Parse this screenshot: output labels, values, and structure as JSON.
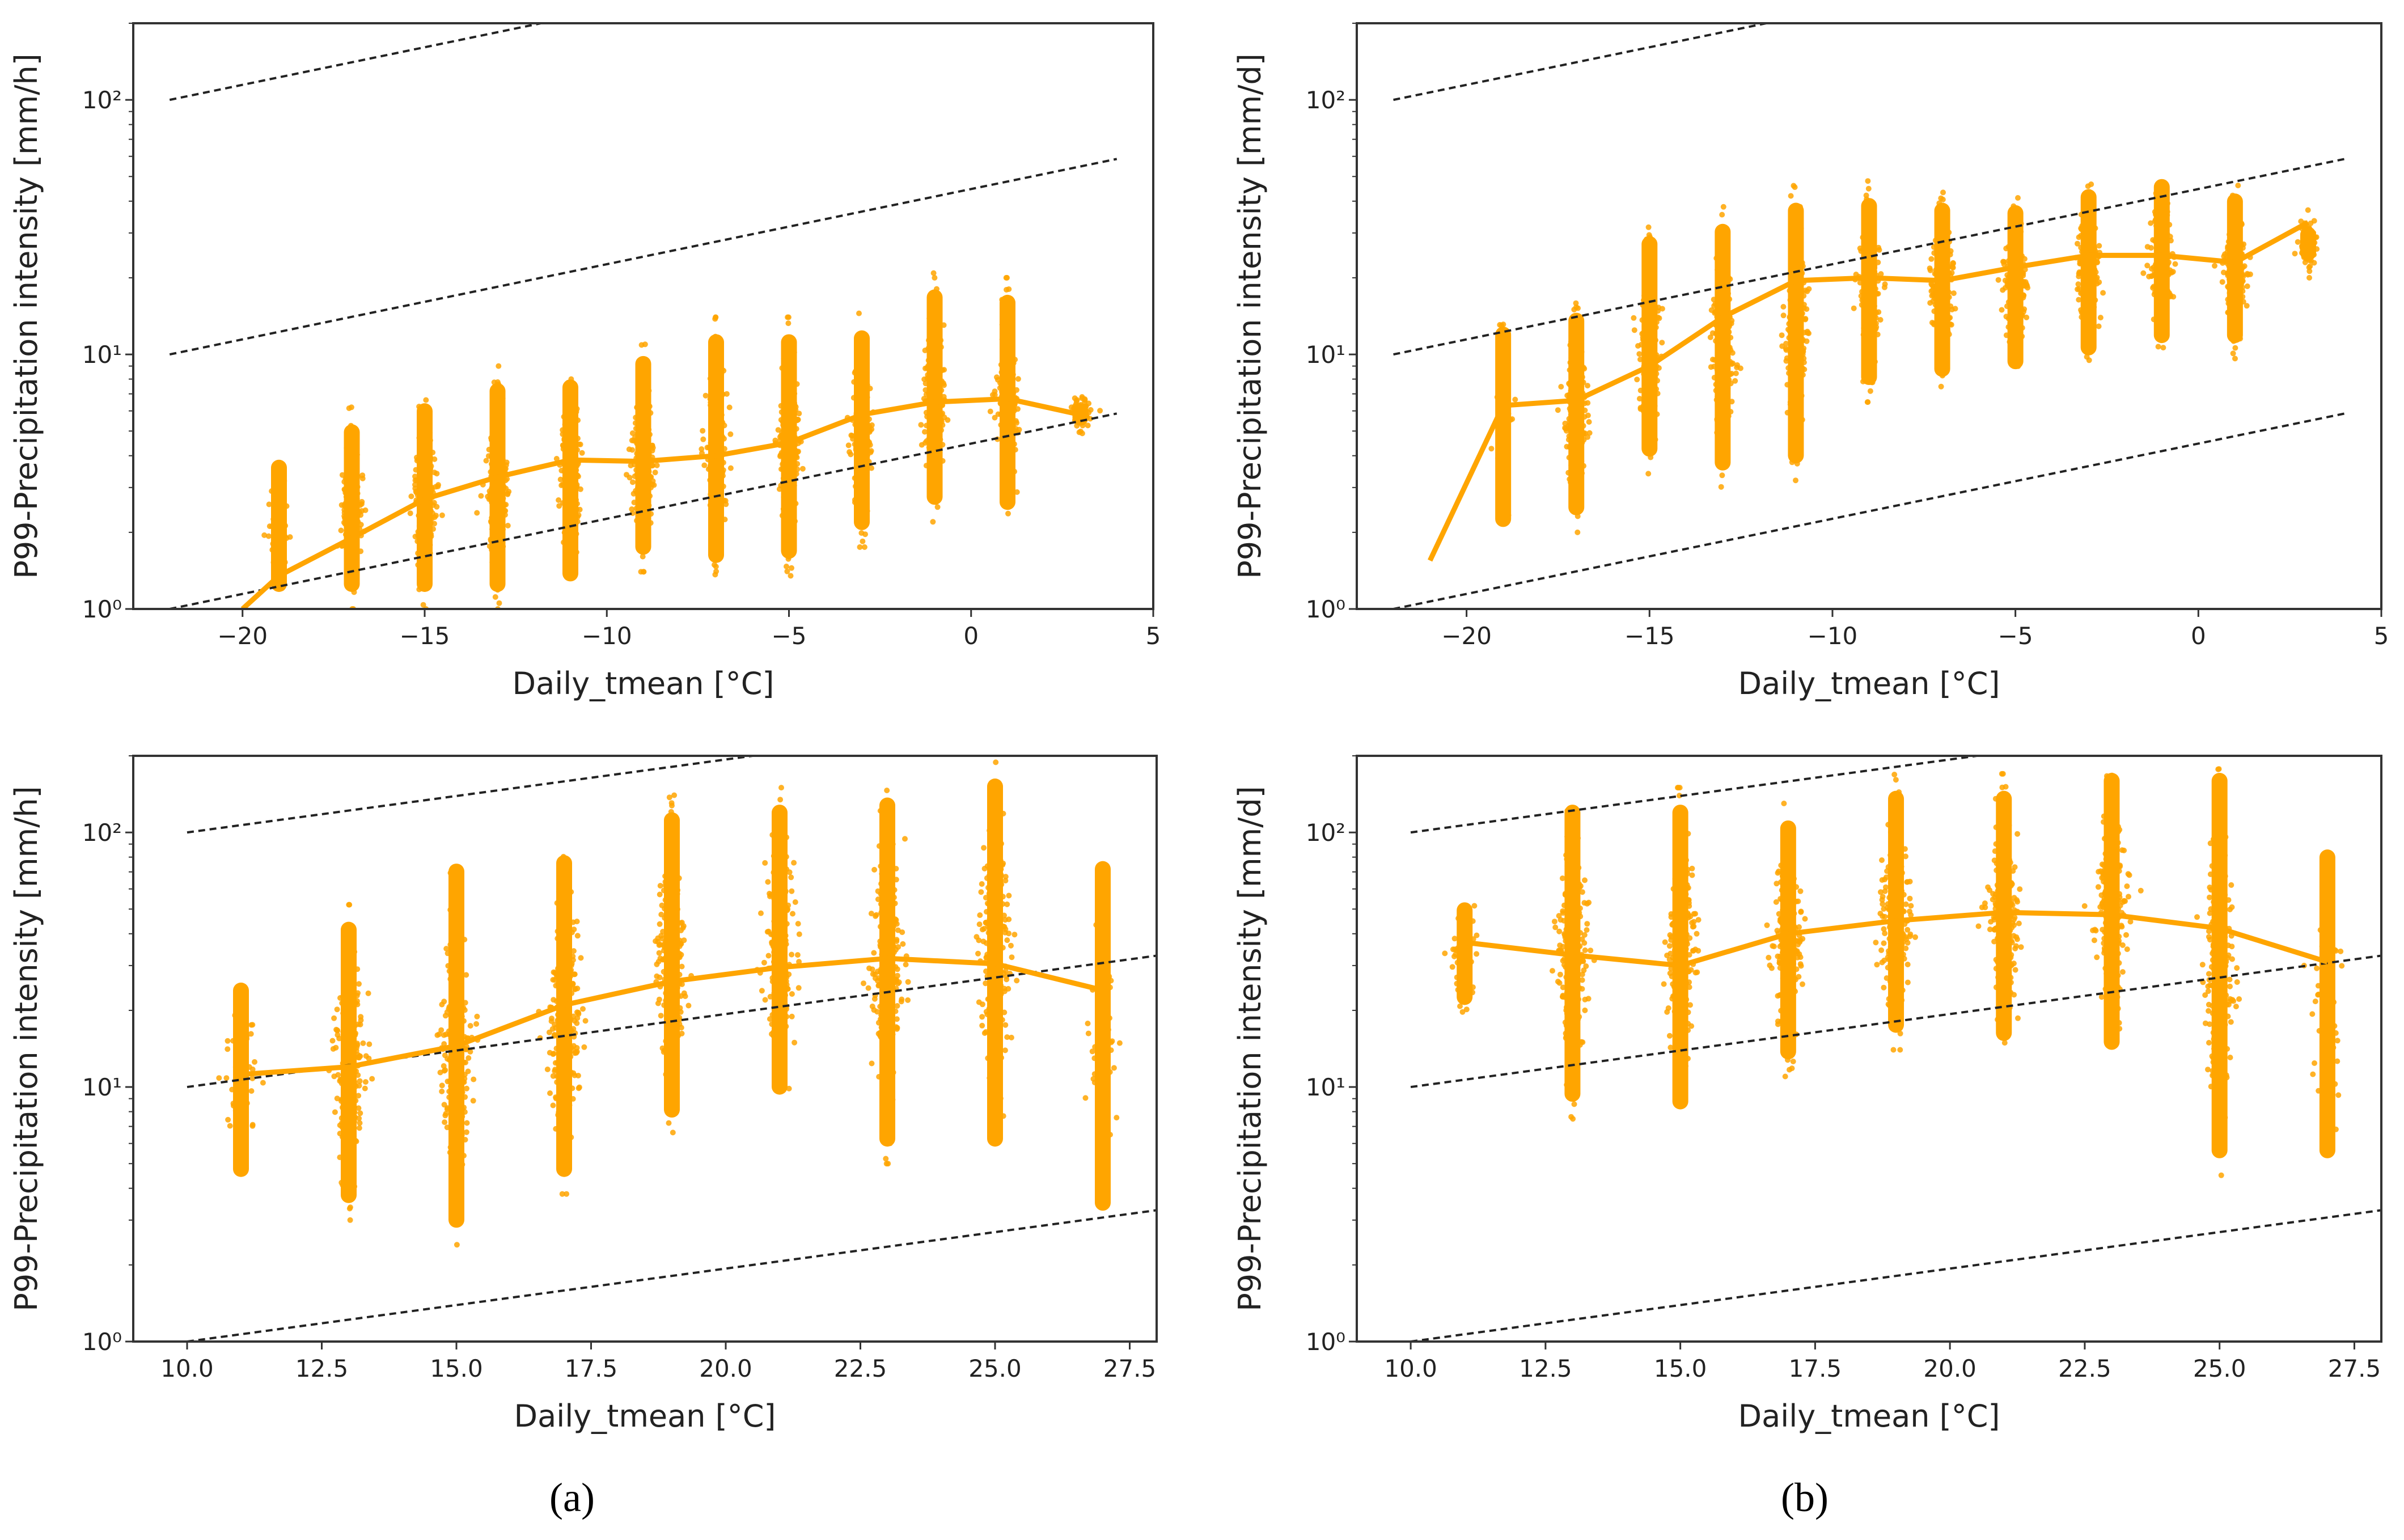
{
  "colors": {
    "series": "#FFA500",
    "reference": "#222222",
    "axes": "#333333"
  },
  "captions": [
    "(a)",
    "(b)"
  ],
  "chart_data": [
    {
      "type": "scatter",
      "panel": "top-left",
      "xlabel": "Daily_tmean [°C]",
      "ylabel": "P99-Precipitation intensity [mm/h]",
      "xlim": [
        -23,
        5
      ],
      "ylim": [
        1,
        200
      ],
      "yscale": "log",
      "xticks": [
        -20,
        -15,
        -10,
        -5,
        0,
        5
      ],
      "xtick_labels": [
        "−20",
        "−15",
        "−10",
        "−5",
        "0",
        "5"
      ],
      "yticks": [
        1,
        10,
        100
      ],
      "ytick_labels": [
        "10⁰",
        "10¹",
        "10²"
      ],
      "reference_lines": {
        "x_start": -22,
        "x_end": 4,
        "y_start": [
          1,
          10,
          100
        ],
        "rate_per_degC": 0.068,
        "style": "dashed"
      },
      "clusters": {
        "x": [
          -19,
          -17,
          -15,
          -13,
          -11,
          -9,
          -7,
          -5,
          -3,
          -1,
          1,
          3
        ],
        "ymin": [
          1,
          1,
          1,
          1,
          1.1,
          1.4,
          1.3,
          1.35,
          1.75,
          2.2,
          2.1,
          4.5
        ],
        "ymax": [
          4.5,
          6.2,
          7.5,
          9,
          9.3,
          11.5,
          14,
          14,
          14.5,
          21,
          20,
          7.5
        ]
      },
      "line": {
        "x": [
          -20,
          -19,
          -17,
          -15,
          -13,
          -11,
          -9,
          -7,
          -5,
          -3,
          -1,
          1,
          3
        ],
        "y": [
          1.0,
          1.35,
          1.9,
          2.7,
          3.3,
          3.85,
          3.8,
          4.0,
          4.5,
          5.8,
          6.5,
          6.7,
          5.8
        ]
      }
    },
    {
      "type": "scatter",
      "panel": "top-right",
      "xlabel": "Daily_tmean [°C]",
      "ylabel": "P99-Precipitation intensity [mm/d]",
      "xlim": [
        -23,
        5
      ],
      "ylim": [
        1,
        200
      ],
      "yscale": "log",
      "xticks": [
        -20,
        -15,
        -10,
        -5,
        0,
        5
      ],
      "xtick_labels": [
        "−20",
        "−15",
        "−10",
        "−5",
        "0",
        "5"
      ],
      "yticks": [
        1,
        10,
        100
      ],
      "ytick_labels": [
        "10⁰",
        "10¹",
        "10²"
      ],
      "reference_lines": {
        "x_start": -22,
        "x_end": 4,
        "y_start": [
          1,
          10,
          100
        ],
        "rate_per_degC": 0.068,
        "style": "dashed"
      },
      "clusters": {
        "x": [
          -19,
          -17,
          -15,
          -13,
          -11,
          -9,
          -7,
          -5,
          -3,
          -1,
          1,
          3
        ],
        "ymin": [
          1.8,
          2,
          3.4,
          3,
          3.2,
          6.5,
          7,
          7.5,
          8.5,
          9.5,
          9.5,
          20
        ],
        "ymax": [
          15,
          17,
          34,
          38,
          46,
          48,
          46,
          45,
          52,
          57,
          50,
          37
        ]
      },
      "line": {
        "x": [
          -21,
          -19,
          -17,
          -15,
          -13,
          -11,
          -9,
          -7,
          -5,
          -3,
          -1,
          1,
          3
        ],
        "y": [
          1.55,
          6.3,
          6.6,
          9,
          14,
          19.5,
          20,
          19.5,
          22,
          24.5,
          24.5,
          23,
          33
        ]
      }
    },
    {
      "type": "scatter",
      "panel": "bottom-left",
      "xlabel": "Daily_tmean [°C]",
      "ylabel": "P99-Precipitation intensity [mm/h]",
      "xlim": [
        9,
        28
      ],
      "ylim": [
        1,
        200
      ],
      "yscale": "log",
      "xticks": [
        10,
        12.5,
        15,
        17.5,
        20,
        22.5,
        25,
        27.5
      ],
      "xtick_labels": [
        "10.0",
        "12.5",
        "15.0",
        "17.5",
        "20.0",
        "22.5",
        "25.0",
        "27.5"
      ],
      "yticks": [
        1,
        10,
        100
      ],
      "ytick_labels": [
        "10⁰",
        "10¹",
        "10²"
      ],
      "reference_lines": {
        "x_start": 10,
        "x_end": 28,
        "y_start": [
          1,
          10,
          100
        ],
        "rate_per_degC": 0.066,
        "style": "dashed"
      },
      "clusters": {
        "x": [
          11,
          13,
          15,
          17,
          19,
          21,
          23,
          25,
          27
        ],
        "ymin": [
          3.8,
          3,
          2.4,
          3.8,
          6.5,
          8,
          5,
          5,
          2.8
        ],
        "ymax": [
          30,
          52,
          88,
          95,
          140,
          150,
          160,
          190,
          90
        ]
      },
      "line": {
        "x": [
          11,
          13,
          15,
          17,
          19,
          21,
          23,
          25,
          27
        ],
        "y": [
          11.2,
          12,
          14.5,
          21,
          26,
          29.5,
          32,
          30.5,
          24
        ]
      }
    },
    {
      "type": "scatter",
      "panel": "bottom-right",
      "xlabel": "Daily_tmean [°C]",
      "ylabel": "P99-Precipitation intensity [mm/d]",
      "xlim": [
        9,
        28
      ],
      "ylim": [
        1,
        200
      ],
      "yscale": "log",
      "xticks": [
        10,
        12.5,
        15,
        17.5,
        20,
        22.5,
        25,
        27.5
      ],
      "xtick_labels": [
        "10.0",
        "12.5",
        "15.0",
        "17.5",
        "20.0",
        "22.5",
        "25.0",
        "27.5"
      ],
      "yticks": [
        1,
        10,
        100
      ],
      "ytick_labels": [
        "10⁰",
        "10¹",
        "10²"
      ],
      "reference_lines": {
        "x_start": 10,
        "x_end": 28,
        "y_start": [
          1,
          10,
          100
        ],
        "rate_per_degC": 0.066,
        "style": "dashed"
      },
      "clusters": {
        "x": [
          11,
          13,
          15,
          17,
          19,
          21,
          23,
          25,
          27
        ],
        "ymin": [
          18,
          7.5,
          7,
          11,
          14,
          13,
          12,
          4.5,
          4.5
        ],
        "ymax": [
          62,
          150,
          150,
          130,
          170,
          170,
          200,
          200,
          100
        ]
      },
      "line": {
        "x": [
          11,
          13,
          15,
          17,
          19,
          21,
          23,
          25,
          27
        ],
        "y": [
          37,
          33,
          30,
          40,
          45,
          48.5,
          47.5,
          42,
          31
        ]
      }
    }
  ]
}
